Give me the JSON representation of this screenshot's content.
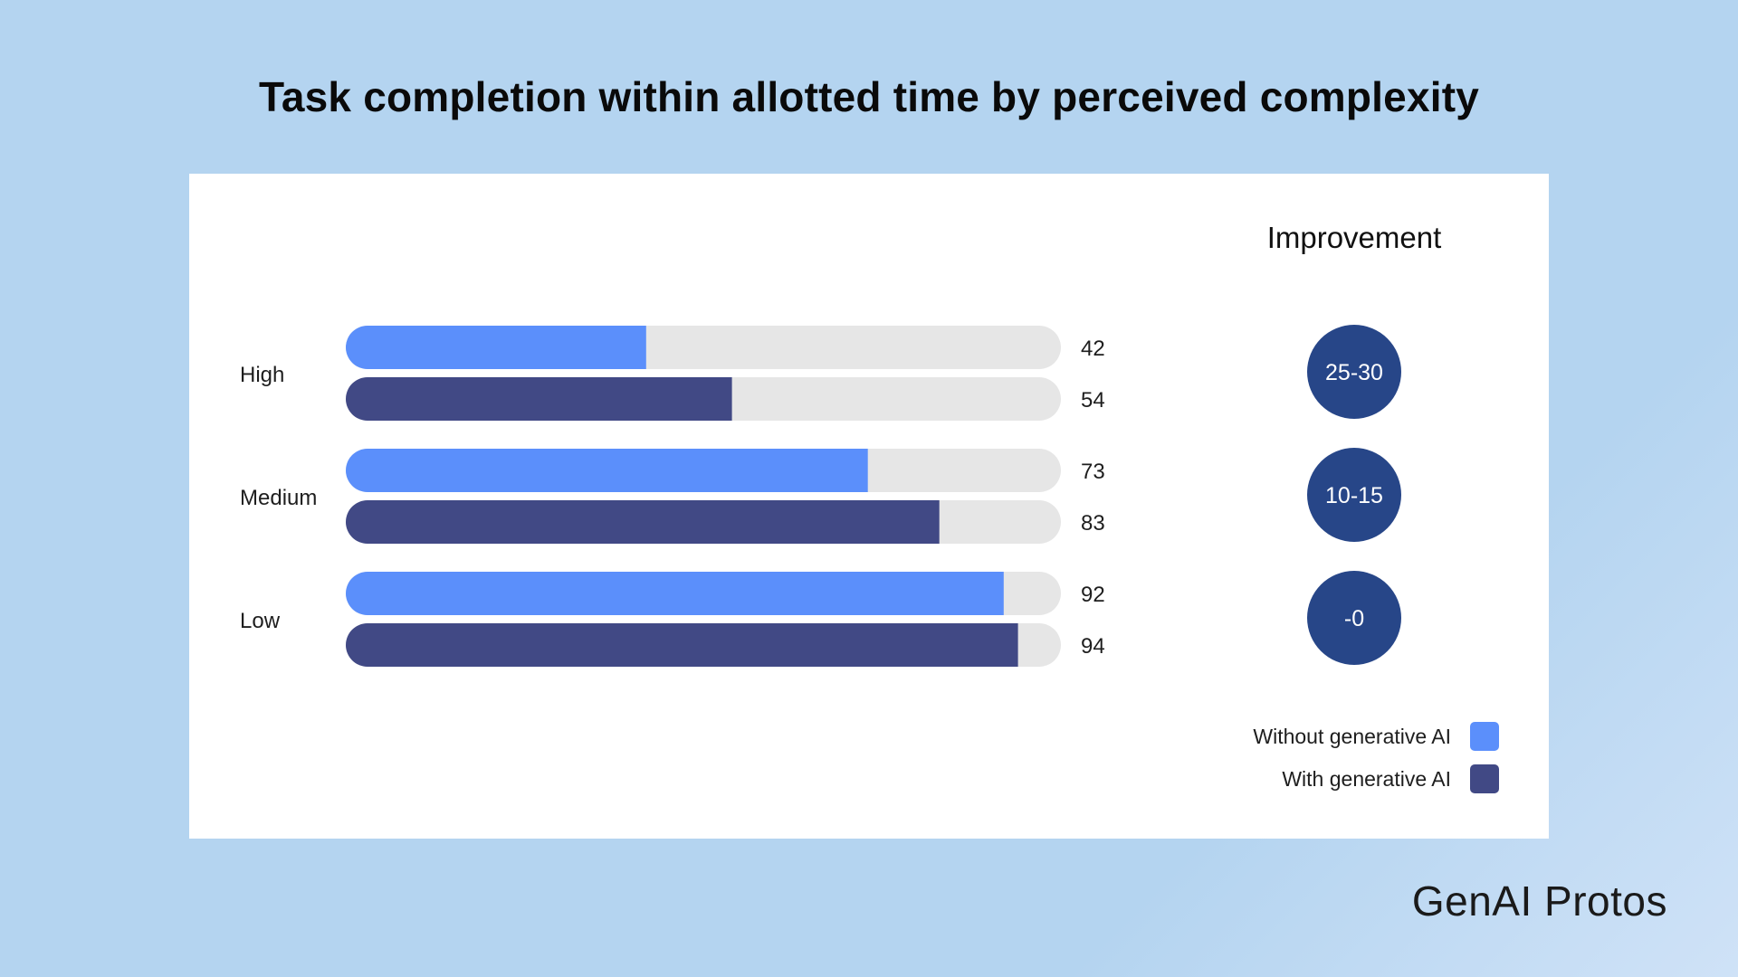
{
  "title": "Task completion within allotted time by perceived complexity",
  "brand": "GenAI Protos",
  "colors": {
    "without_ai": "#5b8ffb",
    "with_ai": "#414985",
    "track": "#e6e6e6",
    "improvement_bubble": "#274688",
    "background": "#b4d4f0"
  },
  "chart_data": {
    "type": "bar",
    "orientation": "horizontal",
    "categories": [
      "High",
      "Medium",
      "Low"
    ],
    "series": [
      {
        "name": "Without generative AI",
        "values": [
          42,
          73,
          92
        ]
      },
      {
        "name": "With generative AI",
        "values": [
          54,
          83,
          94
        ]
      }
    ],
    "xlim": [
      0,
      100
    ],
    "grid": false,
    "improvement": {
      "title": "Improvement",
      "values": [
        "25-30",
        "10-15",
        "-0"
      ]
    },
    "legend": {
      "placement": "bottom-right",
      "entries": [
        "Without generative AI",
        "With generative AI"
      ]
    }
  }
}
